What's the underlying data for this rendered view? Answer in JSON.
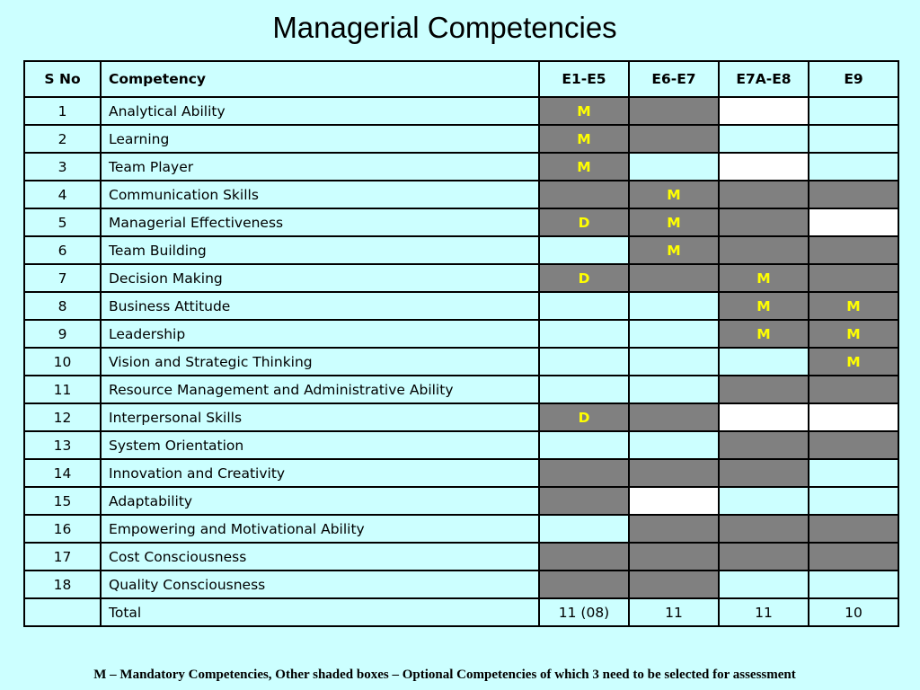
{
  "title": "Managerial Competencies",
  "headers": {
    "sno": "S No",
    "competency": "Competency",
    "levels": [
      "E1-E5",
      "E6-E7",
      "E7A-E8",
      "E9"
    ]
  },
  "rows": [
    {
      "sno": "1",
      "name": "Analytical Ability",
      "cells": [
        {
          "v": "M",
          "bg": "shaded"
        },
        {
          "v": "",
          "bg": "shaded"
        },
        {
          "v": "",
          "bg": "white"
        },
        {
          "v": "",
          "bg": "none"
        }
      ]
    },
    {
      "sno": "2",
      "name": "Learning",
      "cells": [
        {
          "v": "M",
          "bg": "shaded"
        },
        {
          "v": "",
          "bg": "shaded"
        },
        {
          "v": "",
          "bg": "none"
        },
        {
          "v": "",
          "bg": "none"
        }
      ]
    },
    {
      "sno": "3",
      "name": "Team Player",
      "cells": [
        {
          "v": "M",
          "bg": "shaded"
        },
        {
          "v": "",
          "bg": "none"
        },
        {
          "v": "",
          "bg": "white"
        },
        {
          "v": "",
          "bg": "none"
        }
      ]
    },
    {
      "sno": "4",
      "name": "Communication Skills",
      "cells": [
        {
          "v": "",
          "bg": "shaded"
        },
        {
          "v": "M",
          "bg": "shaded"
        },
        {
          "v": "",
          "bg": "shaded"
        },
        {
          "v": "",
          "bg": "shaded"
        }
      ]
    },
    {
      "sno": "5",
      "name": "Managerial Effectiveness",
      "cells": [
        {
          "v": "D",
          "bg": "shaded"
        },
        {
          "v": "M",
          "bg": "shaded"
        },
        {
          "v": "",
          "bg": "shaded"
        },
        {
          "v": "",
          "bg": "white"
        }
      ]
    },
    {
      "sno": "6",
      "name": "Team Building",
      "cells": [
        {
          "v": "",
          "bg": "none"
        },
        {
          "v": "M",
          "bg": "shaded"
        },
        {
          "v": "",
          "bg": "shaded"
        },
        {
          "v": "",
          "bg": "shaded"
        }
      ]
    },
    {
      "sno": "7",
      "name": "Decision Making",
      "cells": [
        {
          "v": "D",
          "bg": "shaded"
        },
        {
          "v": "",
          "bg": "shaded"
        },
        {
          "v": "M",
          "bg": "shaded"
        },
        {
          "v": "",
          "bg": "shaded"
        }
      ]
    },
    {
      "sno": "8",
      "name": "Business Attitude",
      "cells": [
        {
          "v": "",
          "bg": "none"
        },
        {
          "v": "",
          "bg": "none"
        },
        {
          "v": "M",
          "bg": "shaded"
        },
        {
          "v": "M",
          "bg": "shaded"
        }
      ]
    },
    {
      "sno": "9",
      "name": "Leadership",
      "cells": [
        {
          "v": "",
          "bg": "none"
        },
        {
          "v": "",
          "bg": "none"
        },
        {
          "v": "M",
          "bg": "shaded"
        },
        {
          "v": "M",
          "bg": "shaded"
        }
      ]
    },
    {
      "sno": "10",
      "name": "Vision and Strategic Thinking",
      "cells": [
        {
          "v": "",
          "bg": "none"
        },
        {
          "v": "",
          "bg": "none"
        },
        {
          "v": "",
          "bg": "none"
        },
        {
          "v": "M",
          "bg": "shaded"
        }
      ]
    },
    {
      "sno": "11",
      "name": "Resource Management and Administrative Ability",
      "cells": [
        {
          "v": "",
          "bg": "none"
        },
        {
          "v": "",
          "bg": "none"
        },
        {
          "v": "",
          "bg": "shaded"
        },
        {
          "v": "",
          "bg": "shaded"
        }
      ]
    },
    {
      "sno": "12",
      "name": "Interpersonal Skills",
      "cells": [
        {
          "v": "D",
          "bg": "shaded"
        },
        {
          "v": "",
          "bg": "shaded"
        },
        {
          "v": "",
          "bg": "white"
        },
        {
          "v": "",
          "bg": "white"
        }
      ]
    },
    {
      "sno": "13",
      "name": "System Orientation",
      "cells": [
        {
          "v": "",
          "bg": "none"
        },
        {
          "v": "",
          "bg": "none"
        },
        {
          "v": "",
          "bg": "shaded"
        },
        {
          "v": "",
          "bg": "shaded"
        }
      ]
    },
    {
      "sno": "14",
      "name": "Innovation and Creativity",
      "cells": [
        {
          "v": "",
          "bg": "shaded"
        },
        {
          "v": "",
          "bg": "shaded"
        },
        {
          "v": "",
          "bg": "shaded"
        },
        {
          "v": "",
          "bg": "none"
        }
      ]
    },
    {
      "sno": "15",
      "name": "Adaptability",
      "cells": [
        {
          "v": "",
          "bg": "shaded"
        },
        {
          "v": "",
          "bg": "white"
        },
        {
          "v": "",
          "bg": "none"
        },
        {
          "v": "",
          "bg": "none"
        }
      ]
    },
    {
      "sno": "16",
      "name": "Empowering and Motivational Ability",
      "cells": [
        {
          "v": "",
          "bg": "none"
        },
        {
          "v": "",
          "bg": "shaded"
        },
        {
          "v": "",
          "bg": "shaded"
        },
        {
          "v": "",
          "bg": "shaded"
        }
      ]
    },
    {
      "sno": "17",
      "name": "Cost Consciousness",
      "cells": [
        {
          "v": "",
          "bg": "shaded"
        },
        {
          "v": "",
          "bg": "shaded"
        },
        {
          "v": "",
          "bg": "shaded"
        },
        {
          "v": "",
          "bg": "shaded"
        }
      ]
    },
    {
      "sno": "18",
      "name": "Quality Consciousness",
      "cells": [
        {
          "v": "",
          "bg": "shaded"
        },
        {
          "v": "",
          "bg": "shaded"
        },
        {
          "v": "",
          "bg": "none"
        },
        {
          "v": "",
          "bg": "none"
        }
      ]
    }
  ],
  "total": {
    "sno": "",
    "label": "Total",
    "values": [
      "11 (08)",
      "11",
      "11",
      "10"
    ]
  },
  "footnote": "M – Mandatory Competencies, Other shaded boxes – Optional Competencies of which 3 need to be selected for assessment",
  "colors": {
    "background": "#ccffff",
    "shaded": "#808080",
    "white": "#ffffff",
    "mark": "#ffff00"
  }
}
